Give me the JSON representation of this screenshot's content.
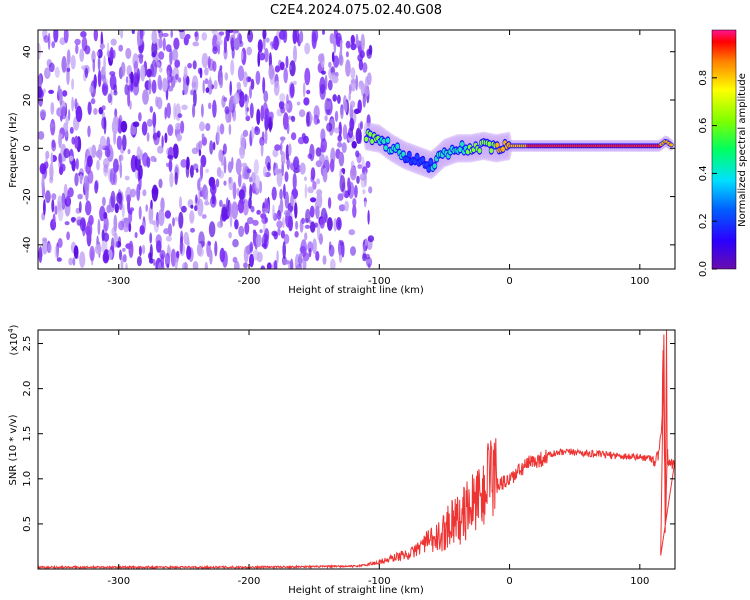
{
  "chart_data": [
    {
      "type": "heatmap",
      "title": "C2E4.2024.075.02.40.G08",
      "xlabel": "Height of straight line (km)",
      "ylabel": "Frequency (Hz)",
      "xlim": [
        -362,
        127
      ],
      "ylim": [
        -50,
        49
      ],
      "xticks": [
        -300,
        -200,
        -100,
        0,
        100
      ],
      "yticks": [
        -40,
        -20,
        0,
        20,
        40
      ],
      "colorbar": {
        "label": "Normalized spectral amplitude",
        "range": [
          0.0,
          1.0
        ],
        "ticks": [
          0.0,
          0.2,
          0.4,
          0.6,
          0.8
        ]
      },
      "noise_region_x": [
        -362,
        -106
      ],
      "signal_track": {
        "x": [
          -110,
          -100,
          -90,
          -80,
          -70,
          -60,
          -50,
          -40,
          -30,
          -20,
          -10,
          0,
          20,
          40,
          60,
          80,
          100,
          115,
          120,
          125
        ],
        "frequency": [
          5,
          4,
          0,
          -3,
          -5,
          -7,
          -2,
          0,
          0,
          1,
          0,
          1,
          1,
          1,
          1,
          1,
          1,
          1,
          3,
          1
        ],
        "amplitude": [
          0.5,
          0.45,
          0.4,
          0.35,
          0.35,
          0.35,
          0.4,
          0.35,
          0.5,
          0.55,
          0.6,
          0.7,
          0.85,
          0.9,
          0.9,
          0.9,
          0.9,
          0.85,
          0.6,
          0.8
        ]
      },
      "colors": {
        "noise": "#7a2cf0",
        "track": "#ff2020"
      }
    },
    {
      "type": "line",
      "xlabel": "Height of straight line (km)",
      "ylabel": "SNR (10 * v/v)",
      "y_exponent_label": "(x10",
      "y_exponent_sup": "4",
      "y_exponent_close": ")",
      "xlim": [
        -362,
        127
      ],
      "ylim": [
        0,
        2.65
      ],
      "xticks": [
        -300,
        -200,
        -100,
        0,
        100
      ],
      "yticks": [
        0.5,
        1.0,
        1.5,
        2.0,
        2.5
      ],
      "ytick_labels": [
        "0.5",
        "1.0",
        "1.5",
        "2.0",
        "2.5"
      ],
      "series": [
        {
          "color": "#ee3333",
          "x": [
            -362,
            -300,
            -200,
            -120,
            -105,
            -95,
            -85,
            -75,
            -65,
            -58,
            -52,
            -46,
            -42,
            -38,
            -34,
            -30,
            -26,
            -22,
            -18,
            -14,
            -10,
            -5,
            0,
            5,
            10,
            15,
            20,
            25,
            30,
            35,
            40,
            50,
            60,
            70,
            80,
            90,
            100,
            108,
            112,
            115,
            117,
            118,
            119,
            120,
            121,
            122,
            125,
            127
          ],
          "y": [
            0.02,
            0.02,
            0.02,
            0.03,
            0.05,
            0.08,
            0.12,
            0.15,
            0.25,
            0.3,
            0.35,
            0.5,
            0.55,
            0.5,
            0.6,
            0.7,
            0.75,
            0.8,
            0.85,
            0.9,
            0.92,
            0.95,
            1.0,
            1.05,
            1.12,
            1.17,
            1.2,
            1.22,
            1.26,
            1.28,
            1.29,
            1.3,
            1.28,
            1.27,
            1.26,
            1.25,
            1.24,
            1.23,
            1.2,
            1.3,
            1.6,
            2.6,
            1.2,
            0.6,
            1.3,
            1.2,
            1.18,
            1.18
          ]
        }
      ]
    }
  ]
}
